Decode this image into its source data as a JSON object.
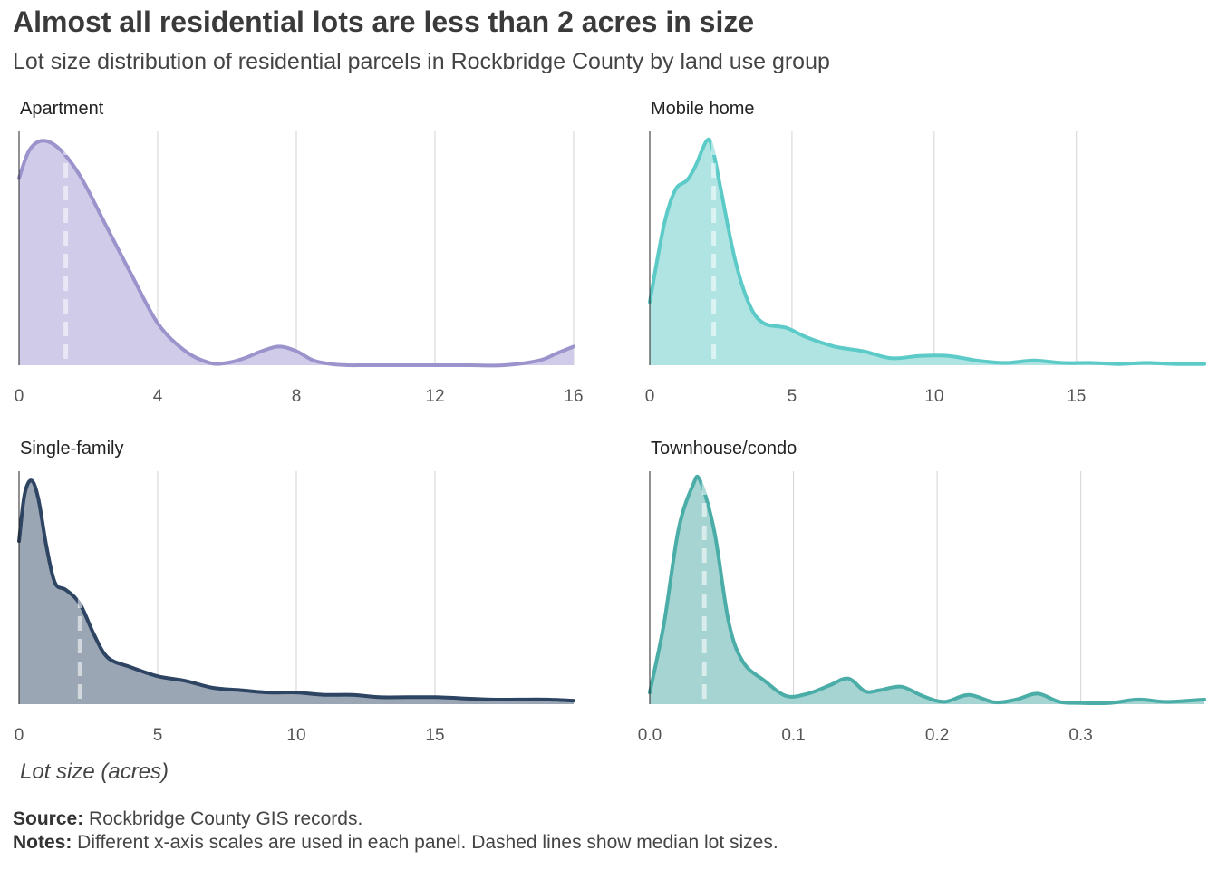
{
  "title": "Almost all residential lots are less than 2 acres in size",
  "subtitle": "Lot size distribution of residential parcels in Rockbridge County by land use group",
  "xlabel": "Lot size (acres)",
  "source_label": "Source:",
  "source_text": " Rockbridge County GIS records.",
  "notes_label": "Notes:",
  "notes_text": " Different x-axis scales are used in each panel. Dashed lines show median lot sizes.",
  "chart_data": [
    {
      "type": "area",
      "panel": "Apartment",
      "color": "#9b94cc",
      "fill": "#cfcbe8",
      "median": 1.35,
      "xlim": [
        0,
        16
      ],
      "ylim": [
        0,
        1
      ],
      "xticks": [
        0,
        4,
        8,
        12,
        16
      ],
      "tick_labels": [
        "0",
        "4",
        "8",
        "12",
        "16"
      ],
      "x": [
        0,
        0.3,
        0.7,
        1.2,
        1.8,
        2.5,
        3.2,
        4,
        4.8,
        5.5,
        6,
        6.5,
        7,
        7.5,
        8,
        8.5,
        9,
        9.5,
        10,
        11,
        12,
        13,
        14,
        15,
        15.5,
        16
      ],
      "y": [
        0.8,
        0.92,
        0.96,
        0.92,
        0.8,
        0.6,
        0.4,
        0.18,
        0.06,
        0.01,
        0.01,
        0.03,
        0.06,
        0.08,
        0.06,
        0.02,
        0.005,
        0.0,
        0.0,
        0.0,
        0.0,
        0.0,
        0.0,
        0.02,
        0.05,
        0.08
      ]
    },
    {
      "type": "area",
      "panel": "Mobile home",
      "color": "#5ccbc8",
      "fill": "#b0e4e3",
      "median": 2.25,
      "xlim": [
        0,
        19.5
      ],
      "ylim": [
        0,
        1
      ],
      "xticks": [
        0,
        5,
        10,
        15
      ],
      "tick_labels": [
        "0",
        "5",
        "10",
        "15"
      ],
      "x": [
        0,
        0.5,
        0.9,
        1.3,
        1.6,
        2.0,
        2.2,
        2.5,
        3.0,
        3.5,
        4.0,
        4.8,
        5.5,
        6.5,
        7.5,
        8.5,
        9.5,
        10.5,
        11.5,
        12.5,
        13.5,
        14.5,
        15.5,
        16.5,
        17.5,
        18.5,
        19.5
      ],
      "y": [
        0.27,
        0.6,
        0.75,
        0.79,
        0.85,
        0.96,
        0.93,
        0.75,
        0.45,
        0.26,
        0.18,
        0.16,
        0.12,
        0.08,
        0.06,
        0.03,
        0.04,
        0.04,
        0.02,
        0.01,
        0.02,
        0.01,
        0.01,
        0.005,
        0.01,
        0.005,
        0.005
      ]
    },
    {
      "type": "area",
      "panel": "Single-family",
      "color": "#2e4463",
      "fill": "#9aa6b3",
      "median": 2.2,
      "xlim": [
        0,
        20
      ],
      "ylim": [
        0,
        1
      ],
      "xticks": [
        0,
        5,
        10,
        15
      ],
      "tick_labels": [
        "0",
        "5",
        "10",
        "15"
      ],
      "x": [
        0,
        0.2,
        0.45,
        0.7,
        1.0,
        1.3,
        1.7,
        2.2,
        2.7,
        3.2,
        4,
        5,
        6,
        7,
        8,
        9,
        10,
        11,
        12,
        13,
        14,
        15,
        16,
        17,
        18,
        19,
        20
      ],
      "y": [
        0.7,
        0.9,
        0.96,
        0.88,
        0.67,
        0.52,
        0.49,
        0.43,
        0.3,
        0.2,
        0.16,
        0.12,
        0.1,
        0.07,
        0.06,
        0.05,
        0.05,
        0.04,
        0.04,
        0.03,
        0.03,
        0.03,
        0.025,
        0.02,
        0.02,
        0.02,
        0.015
      ]
    },
    {
      "type": "area",
      "panel": "Townhouse/condo",
      "color": "#4aada8",
      "fill": "#a6d4d2",
      "median": 0.038,
      "xlim": [
        0,
        0.386
      ],
      "ylim": [
        0,
        1
      ],
      "xticks": [
        0.0,
        0.1,
        0.2,
        0.3
      ],
      "tick_labels": [
        "0.0",
        "0.1",
        "0.2",
        "0.3"
      ],
      "x": [
        0,
        0.01,
        0.02,
        0.03,
        0.035,
        0.045,
        0.055,
        0.065,
        0.08,
        0.095,
        0.11,
        0.125,
        0.138,
        0.15,
        0.16,
        0.175,
        0.19,
        0.205,
        0.222,
        0.24,
        0.255,
        0.27,
        0.285,
        0.3,
        0.32,
        0.34,
        0.36,
        0.386
      ],
      "y": [
        0.05,
        0.35,
        0.75,
        0.94,
        0.96,
        0.74,
        0.35,
        0.18,
        0.1,
        0.035,
        0.045,
        0.08,
        0.11,
        0.055,
        0.06,
        0.075,
        0.035,
        0.01,
        0.04,
        0.008,
        0.02,
        0.045,
        0.01,
        0.005,
        0.005,
        0.02,
        0.01,
        0.02
      ]
    }
  ]
}
